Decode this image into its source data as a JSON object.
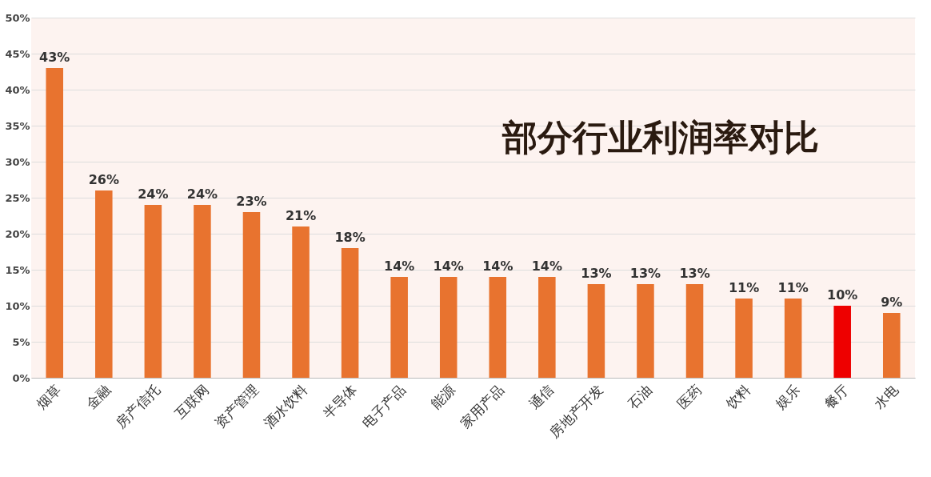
{
  "chart_data": {
    "type": "bar",
    "title": "部分行业利润率对比",
    "categories": [
      "烟草",
      "金融",
      "房产信托",
      "互联网",
      "资产管理",
      "酒水饮料",
      "半导体",
      "电子产品",
      "能源",
      "家用产品",
      "通信",
      "房地产开发",
      "石油",
      "医药",
      "饮料",
      "娱乐",
      "餐厅",
      "水电"
    ],
    "values": [
      43,
      26,
      24,
      24,
      23,
      21,
      18,
      14,
      14,
      14,
      14,
      13,
      13,
      13,
      11,
      11,
      10,
      9
    ],
    "value_labels": [
      "43%",
      "26%",
      "24%",
      "24%",
      "23%",
      "21%",
      "18%",
      "14%",
      "14%",
      "14%",
      "14%",
      "13%",
      "13%",
      "13%",
      "11%",
      "11%",
      "10%",
      "9%"
    ],
    "colors": [
      "#e8732f",
      "#e8732f",
      "#e8732f",
      "#e8732f",
      "#e8732f",
      "#e8732f",
      "#e8732f",
      "#e8732f",
      "#e8732f",
      "#e8732f",
      "#e8732f",
      "#e8732f",
      "#e8732f",
      "#e8732f",
      "#e8732f",
      "#e8732f",
      "#ee0000",
      "#e8732f"
    ],
    "ylim": [
      0,
      50
    ],
    "yticks": [
      {
        "value": 0,
        "label": "0%"
      },
      {
        "value": 5,
        "label": "5%"
      },
      {
        "value": 10,
        "label": "10%"
      },
      {
        "value": 15,
        "label": "15%"
      },
      {
        "value": 20,
        "label": "20%"
      },
      {
        "value": 25,
        "label": "25%"
      },
      {
        "value": 30,
        "label": "30%"
      },
      {
        "value": 35,
        "label": "35%"
      },
      {
        "value": 40,
        "label": "40%"
      },
      {
        "value": 45,
        "label": "45%"
      },
      {
        "value": 50,
        "label": "50%"
      }
    ],
    "grid": true
  }
}
